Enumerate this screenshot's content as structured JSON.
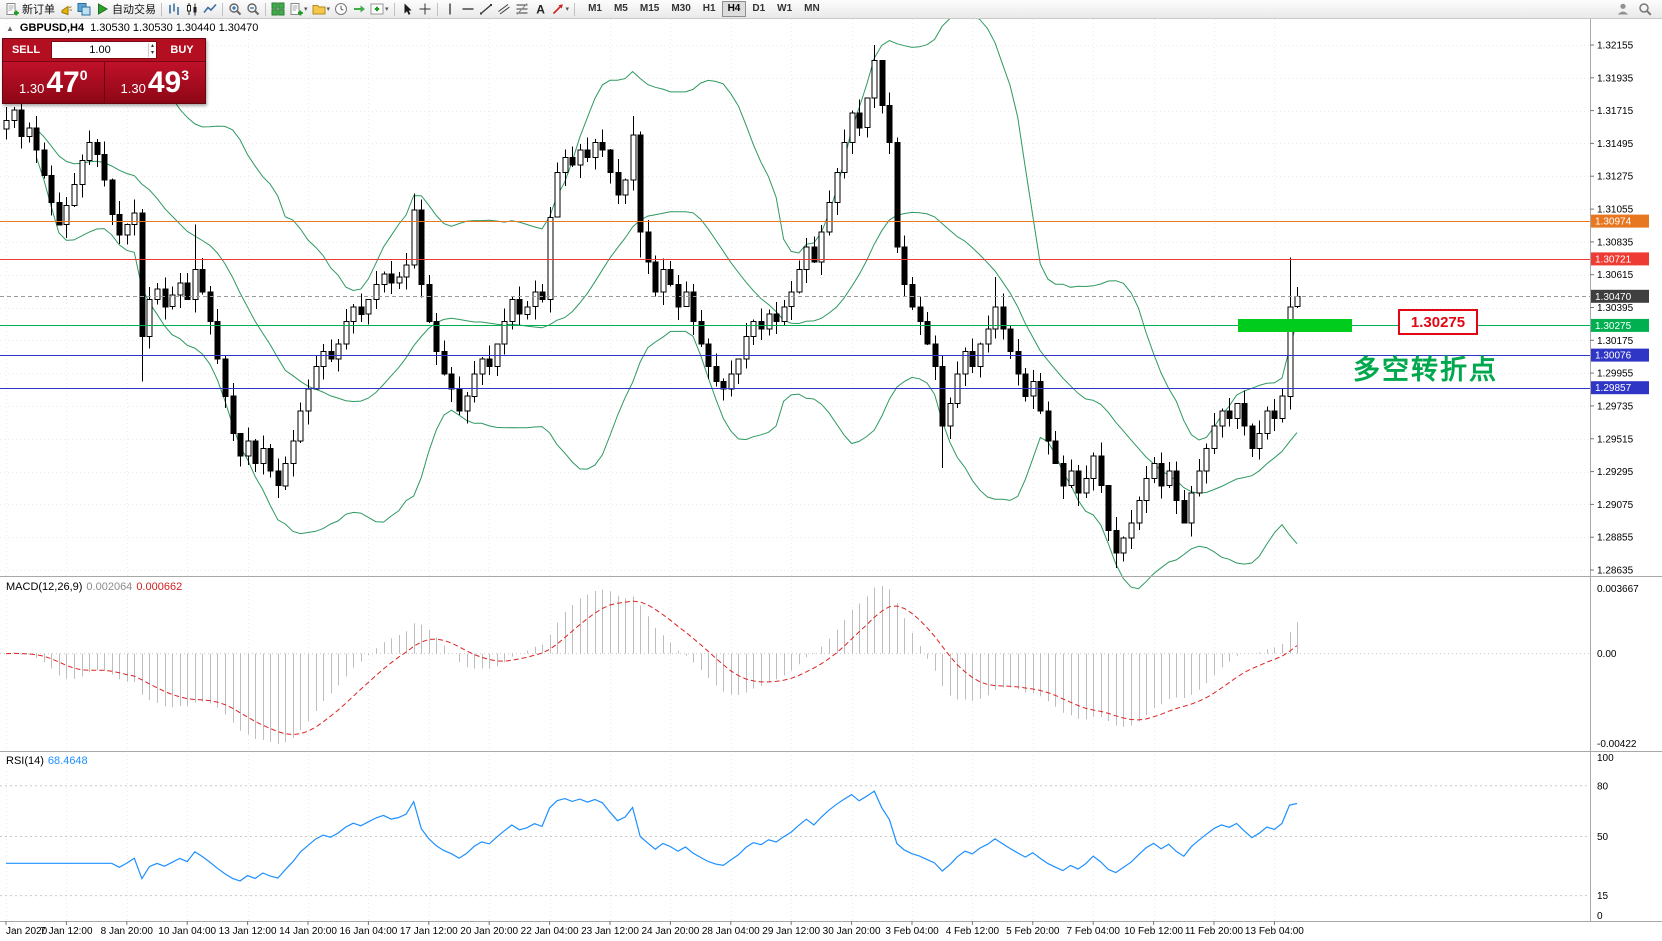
{
  "toolbar": {
    "items": [
      {
        "name": "new-order-button",
        "icon": "doc-plus",
        "label": "新订单"
      },
      {
        "name": "alerts-icon",
        "icon": "horn"
      },
      {
        "name": "chart-windows-icon",
        "icon": "layers"
      },
      {
        "name": "autotrading-button",
        "icon": "play",
        "label": "自动交易"
      },
      {
        "sep": true
      },
      {
        "name": "bar-chart-icon",
        "icon": "bars"
      },
      {
        "name": "candlestick-chart-icon",
        "icon": "candles"
      },
      {
        "name": "line-chart-icon",
        "icon": "line"
      },
      {
        "sep": true
      },
      {
        "name": "zoom-in-icon",
        "icon": "zoom-in"
      },
      {
        "name": "zoom-out-icon",
        "icon": "zoom-out"
      },
      {
        "sep": true
      },
      {
        "name": "tile-windows-icon",
        "icon": "tile"
      },
      {
        "name": "new-chart-icon",
        "icon": "doc-plus",
        "caret": true
      },
      {
        "name": "profiles-icon",
        "icon": "folder",
        "caret": true
      },
      {
        "name": "auto-scroll-icon",
        "icon": "clock"
      },
      {
        "name": "chart-shift-icon",
        "icon": "shift"
      },
      {
        "name": "indicators-icon",
        "icon": "func",
        "caret": true
      },
      {
        "sep": true
      },
      {
        "name": "cursor-icon",
        "icon": "cursor"
      },
      {
        "name": "crosshair-icon",
        "icon": "cross"
      },
      {
        "sep": true
      },
      {
        "name": "vertical-line-icon",
        "icon": "vline"
      },
      {
        "name": "horizontal-line-icon",
        "icon": "hline"
      },
      {
        "name": "trendline-icon",
        "icon": "trend"
      },
      {
        "name": "equidistant-channel-icon",
        "icon": "channel"
      },
      {
        "name": "fibonacci-icon",
        "icon": "fib"
      },
      {
        "name": "text-tool-icon",
        "icon": "text"
      },
      {
        "name": "arrows-tool-icon",
        "icon": "arrow",
        "caret": true
      },
      {
        "sep": true
      }
    ],
    "timeframes": {
      "items": [
        "M1",
        "M5",
        "M15",
        "M30",
        "H1",
        "H4",
        "D1",
        "W1",
        "MN"
      ],
      "active": "H4"
    },
    "right_items": [
      {
        "name": "community-icon",
        "icon": "person"
      },
      {
        "name": "search-icon",
        "icon": "search"
      }
    ]
  },
  "quote_panel": {
    "symbol": "GBPUSD,H4",
    "ohlc_text": "1.30530 1.30530 1.30440 1.30470",
    "sell_label": "SELL",
    "buy_label": "BUY",
    "volume": "1.00",
    "sell_price": {
      "prefix": "1.30",
      "big": "47",
      "sup": "0"
    },
    "buy_price": {
      "prefix": "1.30",
      "big": "49",
      "sup": "3"
    }
  },
  "price_scale": {
    "tic_note": "main chart right axis",
    "ticks": [
      "1.32155",
      "1.31935",
      "1.31715",
      "1.31495",
      "1.31275",
      "1.31055",
      "1.30835",
      "1.30615",
      "1.30395",
      "1.30175",
      "1.29955",
      "1.29735",
      "1.29515",
      "1.29295",
      "1.29075",
      "1.28855",
      "1.28635"
    ],
    "tags": [
      {
        "value": "1.30974",
        "color": "#e87722"
      },
      {
        "value": "1.30721",
        "color": "#ee3b33"
      },
      {
        "value": "1.30470",
        "color": "#3f3f3f"
      },
      {
        "value": "1.30275",
        "color": "#00b050"
      },
      {
        "value": "1.30076",
        "color": "#2f35c4"
      },
      {
        "value": "1.29857",
        "color": "#2f35c4"
      }
    ]
  },
  "levels": [
    {
      "price": 1.30974,
      "color": "#e87722",
      "style": "solid"
    },
    {
      "price": 1.30721,
      "color": "#ee3b33",
      "style": "solid"
    },
    {
      "price": 1.3047,
      "color": "#9a9a9a",
      "style": "dashed"
    },
    {
      "price": 1.30275,
      "color": "#00b050",
      "style": "solid"
    },
    {
      "price": 1.30076,
      "color": "#2f35c4",
      "style": "solid"
    },
    {
      "price": 1.29857,
      "color": "#2f35c4",
      "style": "solid"
    }
  ],
  "annotations": {
    "price_label_text": "1.30275",
    "turning_point_text": "多空转折点",
    "green_bar": {
      "price": 1.30275,
      "color": "#00cc1e"
    }
  },
  "macd_panel": {
    "name": "MACD(12,26,9)",
    "main_value": "0.002064",
    "signal_value": "0.000662",
    "scale": [
      "0.003667",
      "0.00",
      "-0.00422"
    ]
  },
  "rsi_panel": {
    "name": "RSI(14)",
    "value": "68.4648",
    "scale": [
      "100",
      "80",
      "50",
      "15",
      "0"
    ]
  },
  "time_axis": {
    "step": 8,
    "labels": [
      "Jan 2020",
      "7 Jan 12:00",
      "8 Jan 20:00",
      "10 Jan 04:00",
      "13 Jan 12:00",
      "14 Jan 20:00",
      "16 Jan 04:00",
      "17 Jan 12:00",
      "20 Jan 20:00",
      "22 Jan 04:00",
      "23 Jan 12:00",
      "24 Jan 20:00",
      "28 Jan 04:00",
      "29 Jan 12:00",
      "30 Jan 20:00",
      "3 Feb 04:00",
      "4 Feb 12:00",
      "5 Feb 20:00",
      "7 Feb 04:00",
      "10 Feb 12:00",
      "11 Feb 20:00",
      "13 Feb 04:00"
    ]
  },
  "chart_data": [
    {
      "type": "candlestick",
      "symbol": "GBPUSD",
      "timeframe": "H4",
      "ylim": [
        1.28635,
        1.32155
      ],
      "closes": [
        1.3165,
        1.3172,
        1.3154,
        1.316,
        1.3145,
        1.3128,
        1.311,
        1.3095,
        1.3108,
        1.3122,
        1.3138,
        1.315,
        1.3142,
        1.3125,
        1.3102,
        1.3088,
        1.3095,
        1.3103,
        1.302,
        1.3045,
        1.3052,
        1.304,
        1.3048,
        1.3056,
        1.3045,
        1.3065,
        1.305,
        1.303,
        1.3005,
        1.298,
        1.2955,
        1.294,
        1.295,
        1.2935,
        1.2945,
        1.293,
        1.292,
        1.2935,
        1.295,
        1.297,
        1.2985,
        1.3,
        1.301,
        1.3005,
        1.3015,
        1.303,
        1.304,
        1.3035,
        1.3045,
        1.3055,
        1.3062,
        1.3056,
        1.306,
        1.3068,
        1.3105,
        1.3055,
        1.303,
        1.301,
        1.2995,
        1.2985,
        1.297,
        1.298,
        1.2995,
        1.3005,
        1.3,
        1.3015,
        1.303,
        1.3045,
        1.3035,
        1.304,
        1.305,
        1.3045,
        1.31,
        1.313,
        1.314,
        1.3135,
        1.3145,
        1.314,
        1.315,
        1.3145,
        1.313,
        1.3115,
        1.3125,
        1.3155,
        1.309,
        1.307,
        1.305,
        1.3065,
        1.3055,
        1.304,
        1.305,
        1.303,
        1.3015,
        1.3,
        1.299,
        1.2985,
        1.2995,
        1.3005,
        1.302,
        1.303,
        1.3025,
        1.3035,
        1.303,
        1.304,
        1.305,
        1.3065,
        1.308,
        1.307,
        1.309,
        1.311,
        1.313,
        1.315,
        1.317,
        1.316,
        1.318,
        1.3205,
        1.3175,
        1.315,
        1.308,
        1.3055,
        1.304,
        1.303,
        1.3015,
        1.3,
        1.296,
        1.2975,
        1.2995,
        1.301,
        1.3,
        1.3015,
        1.3025,
        1.304,
        1.3025,
        1.301,
        1.2995,
        1.298,
        1.299,
        1.297,
        1.295,
        1.2935,
        1.292,
        1.293,
        1.2915,
        1.2925,
        1.294,
        1.292,
        1.289,
        1.2875,
        1.2885,
        1.2895,
        1.291,
        1.2925,
        1.2935,
        1.292,
        1.293,
        1.291,
        1.2895,
        1.2915,
        1.293,
        1.2945,
        1.296,
        1.297,
        1.2965,
        1.2975,
        1.296,
        1.2945,
        1.2955,
        1.297,
        1.2965,
        1.298,
        1.304,
        1.3047
      ],
      "wick_amplitude": 0.0009,
      "wick_overrides": {
        "18": {
          "low": 1.299
        },
        "25": {
          "high": 1.3095
        },
        "54": {
          "high": 1.3116
        },
        "83": {
          "high": 1.3168
        },
        "84": {
          "low": 1.3073
        },
        "115": {
          "high": 1.32155
        },
        "116": {
          "high": 1.3195
        },
        "124": {
          "low": 1.2932
        },
        "131": {
          "high": 1.306
        },
        "147": {
          "low": 1.2865
        },
        "170": {
          "high": 1.3073
        }
      },
      "bollinger": {
        "period": 20,
        "deviation": 2,
        "color": "#2e9960"
      }
    },
    {
      "type": "macd",
      "params": "12,26,9",
      "main_value": 0.002064,
      "signal_value": 0.000662,
      "ylim": [
        -0.00422,
        0.003667
      ],
      "histogram_color": "#bdbdbd",
      "signal_color": "#dd2222"
    },
    {
      "type": "rsi",
      "period": 14,
      "value": 68.4648,
      "ylim": [
        0,
        100
      ],
      "levels": [
        80,
        50,
        15
      ],
      "color": "#1e90ff"
    }
  ]
}
